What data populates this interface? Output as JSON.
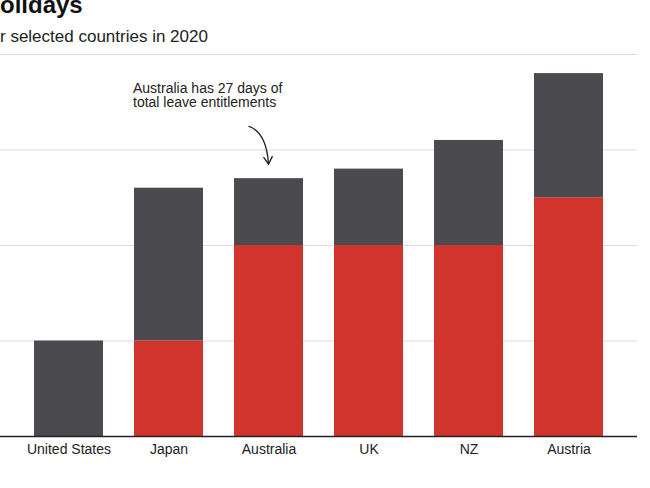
{
  "chart_data": {
    "type": "bar",
    "title": "olidays",
    "subtitle": "r selected countries in 2020",
    "annotation": "Australia has 27 days of\ntotal leave entitlements",
    "annotation_category": "Australia",
    "categories": [
      "United States",
      "Japan",
      "Australia",
      "UK",
      "NZ",
      "Austria"
    ],
    "series": [
      {
        "color": "#d0342c",
        "values": [
          0,
          10,
          20,
          20,
          20,
          25
        ]
      },
      {
        "color": "#4b4a4f",
        "values": [
          10,
          16,
          7,
          8,
          11,
          13
        ]
      }
    ],
    "stacked": true,
    "ylim": [
      0,
      40
    ],
    "yticks": [
      0,
      10,
      20,
      30,
      40
    ],
    "grid": true,
    "tick_labels": "x"
  }
}
